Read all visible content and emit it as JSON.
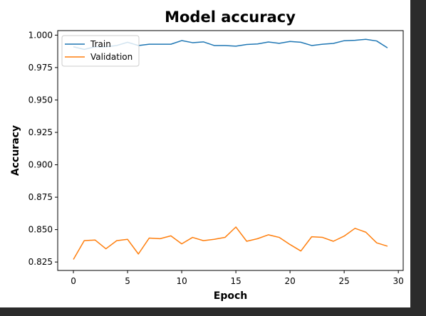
{
  "chart_data": {
    "type": "line",
    "title": "Model accuracy",
    "xlabel": "Epoch",
    "ylabel": "Accuracy",
    "xlim": [
      -1.45,
      30.45
    ],
    "ylim": [
      0.8185,
      1.0035
    ],
    "xticks": [
      0,
      5,
      10,
      15,
      20,
      25,
      30
    ],
    "yticks": [
      0.825,
      0.85,
      0.875,
      0.9,
      0.925,
      0.95,
      0.975,
      1.0
    ],
    "xtick_labels": [
      "0",
      "5",
      "10",
      "15",
      "20",
      "25",
      "30"
    ],
    "ytick_labels": [
      "0.825",
      "0.850",
      "0.875",
      "0.900",
      "0.925",
      "0.950",
      "0.975",
      "1.000"
    ],
    "legend_position": "top-left",
    "grid": false,
    "x": [
      0,
      1,
      2,
      3,
      4,
      5,
      6,
      7,
      8,
      9,
      10,
      11,
      12,
      13,
      14,
      15,
      16,
      17,
      18,
      19,
      20,
      21,
      22,
      23,
      24,
      25,
      26,
      27,
      28,
      29
    ],
    "series": [
      {
        "name": "Train",
        "color": "#1f77b4",
        "values": [
          0.991,
          0.989,
          0.991,
          0.991,
          0.992,
          0.9945,
          0.992,
          0.993,
          0.993,
          0.993,
          0.9958,
          0.9942,
          0.9948,
          0.992,
          0.992,
          0.9915,
          0.9928,
          0.9932,
          0.9947,
          0.9937,
          0.9951,
          0.9945,
          0.992,
          0.993,
          0.9936,
          0.9957,
          0.996,
          0.9968,
          0.9955,
          0.9902
        ]
      },
      {
        "name": "Validation",
        "color": "#ff7f0e",
        "values": [
          0.827,
          0.8415,
          0.842,
          0.8352,
          0.8415,
          0.8425,
          0.8312,
          0.8435,
          0.843,
          0.8452,
          0.839,
          0.844,
          0.8415,
          0.8425,
          0.844,
          0.852,
          0.841,
          0.843,
          0.846,
          0.844,
          0.8385,
          0.8335,
          0.8445,
          0.844,
          0.841,
          0.845,
          0.851,
          0.848,
          0.8398,
          0.8372
        ]
      }
    ]
  }
}
